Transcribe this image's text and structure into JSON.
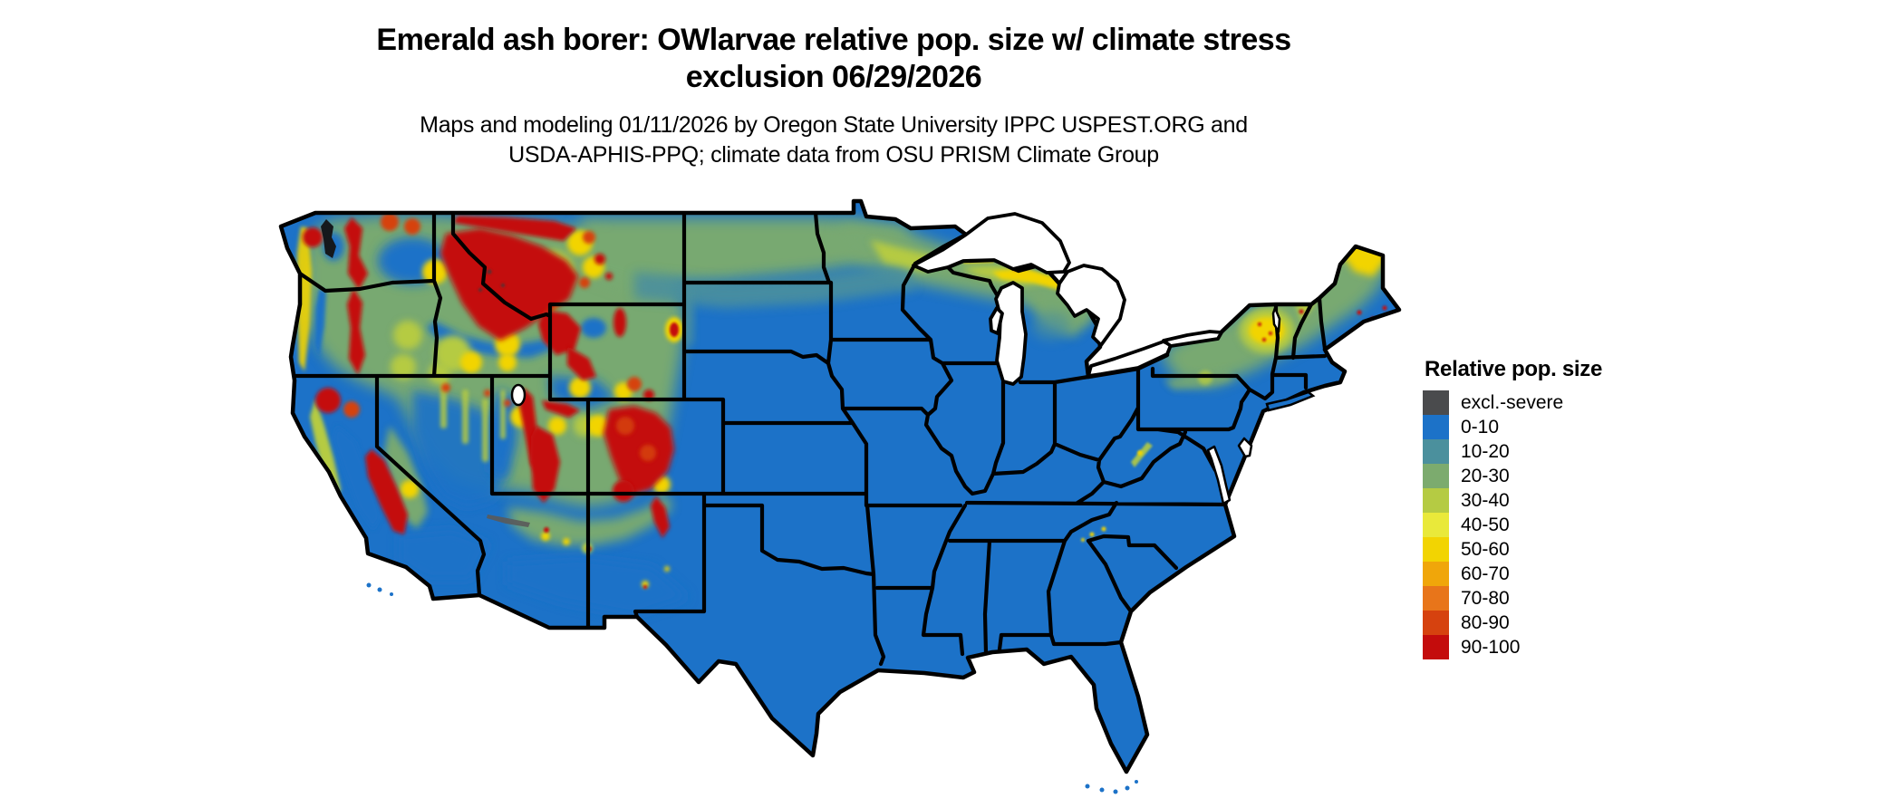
{
  "title": {
    "line1": "Emerald ash borer: OWlarvae relative pop. size w/ climate stress",
    "line2": "exclusion 06/29/2026"
  },
  "subtitle": {
    "line1": "Maps and modeling 01/11/2026 by Oregon State University IPPC USPEST.ORG and",
    "line2": "USDA-APHIS-PPQ; climate data from OSU PRISM Climate Group"
  },
  "legend": {
    "title": "Relative pop. size",
    "items": [
      {
        "label": "excl.-severe",
        "color": "#4a4b4d"
      },
      {
        "label": "0-10",
        "color": "#1c72c8"
      },
      {
        "label": "10-20",
        "color": "#4b909d"
      },
      {
        "label": "20-30",
        "color": "#7cab6e"
      },
      {
        "label": "30-40",
        "color": "#b5cb43"
      },
      {
        "label": "40-50",
        "color": "#e9e93a"
      },
      {
        "label": "50-60",
        "color": "#f2d402"
      },
      {
        "label": "60-70",
        "color": "#f0a60a"
      },
      {
        "label": "70-80",
        "color": "#e8751a"
      },
      {
        "label": "80-90",
        "color": "#d6420f"
      },
      {
        "label": "90-100",
        "color": "#c40c0c"
      }
    ]
  },
  "map": {
    "type": "raster choropleth map",
    "extent": "Contiguous United States",
    "water_color": "#ffffff",
    "boundary_color": "#000000"
  }
}
